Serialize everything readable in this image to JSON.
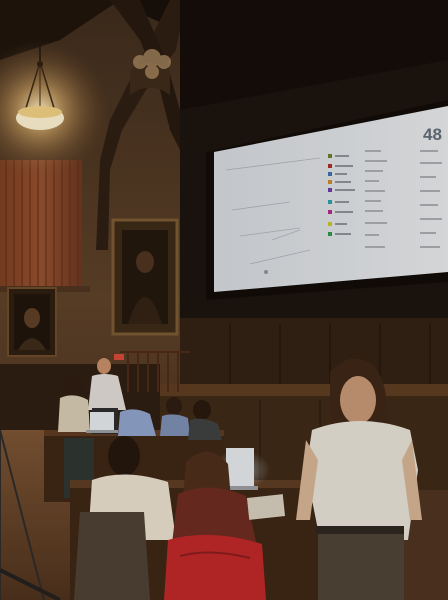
{
  "screen": {
    "number": "48"
  },
  "colors": {
    "wall": "#4a3424",
    "ceiling": "#120d09",
    "screen": "#dfe6ec",
    "floor": "#6b4a2e",
    "laptop_glow": "#e8eef4",
    "lamp": "#ffe7a8",
    "jacket_red": "#c0262a"
  },
  "icons": {
    "lamp": "pendant-lamp-icon",
    "projector_screen": "projector-screen-icon",
    "portrait": "portrait-frame-icon"
  }
}
